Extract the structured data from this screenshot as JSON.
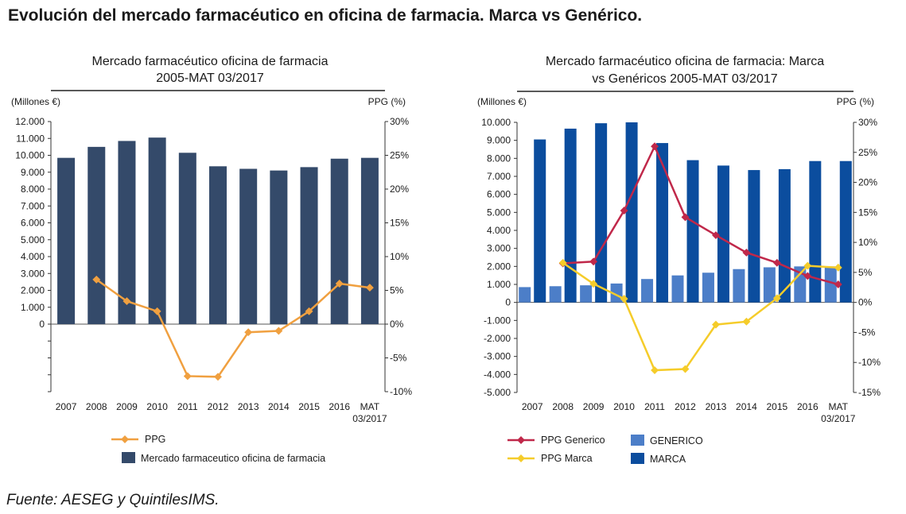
{
  "page": {
    "title": "Evolución del mercado farmacéutico en oficina de farmacia. Marca vs Genérico.",
    "source": "Fuente: AESEG y QuintilesIMS."
  },
  "colors": {
    "bar_market": "#344a6a",
    "ppg_market": "#f0a040",
    "bar_generic": "#4c7ec8",
    "bar_brand": "#0b4d9e",
    "ppg_generic": "#c0284a",
    "ppg_brand": "#f5cc2a"
  },
  "chart_data": [
    {
      "type": "bar",
      "title_lines": [
        "Mercado farmacéutico oficina de farmacia",
        "2005-MAT 03/2017"
      ],
      "left_unit": "(Millones €)",
      "right_unit": "PPG (%)",
      "categories": [
        "2007",
        "2008",
        "2009",
        "2010",
        "2011",
        "2012",
        "2013",
        "2014",
        "2015",
        "2016",
        "MAT|03/2017"
      ],
      "left_axis": {
        "min": -4000,
        "max": 12000,
        "tick_labels": [
          "12.000",
          "11.000",
          "10.000",
          "9.000",
          "8.000",
          "7.000",
          "6.000",
          "5.000",
          "4.000",
          "3.000",
          "2.000",
          "1.000",
          "0"
        ],
        "tick_values": [
          12000,
          11000,
          10000,
          9000,
          8000,
          7000,
          6000,
          5000,
          4000,
          3000,
          2000,
          1000,
          0
        ]
      },
      "right_axis": {
        "min": -10,
        "max": 30,
        "tick_labels": [
          "30%",
          "25%",
          "20%",
          "15%",
          "10%",
          "5%",
          "0%",
          "-5%",
          "-10%"
        ],
        "tick_values": [
          30,
          25,
          20,
          15,
          10,
          5,
          0,
          -5,
          -10
        ]
      },
      "series": [
        {
          "name": "Mercado farmaceutico oficina de farmacia",
          "kind": "bar",
          "axis": "left",
          "values": [
            9850,
            10500,
            10850,
            11050,
            10150,
            9350,
            9200,
            9100,
            9300,
            9800,
            9850
          ]
        },
        {
          "name": "PPG",
          "kind": "line",
          "axis": "right",
          "values": [
            null,
            6.6,
            3.4,
            1.9,
            -7.7,
            -7.8,
            -1.2,
            -1.0,
            1.9,
            6.0,
            5.4
          ]
        }
      ],
      "legend": {
        "placement": "bottom"
      }
    },
    {
      "type": "bar",
      "title_lines": [
        "Mercado farmacéutico oficina de farmacia: Marca",
        "vs Genéricos 2005-MAT 03/2017"
      ],
      "left_unit": "(Millones €)",
      "right_unit": "PPG (%)",
      "categories": [
        "2007",
        "2008",
        "2009",
        "2010",
        "2011",
        "2012",
        "2013",
        "2014",
        "2015",
        "2016",
        "MAT|03/2017"
      ],
      "left_axis": {
        "min": -5000,
        "max": 10000,
        "tick_labels": [
          "10.000",
          "9.000",
          "8.000",
          "7.000",
          "6.000",
          "5.000",
          "4.000",
          "3.000",
          "2.000",
          "1.000",
          "0",
          "-1.000",
          "-2.000",
          "-3.000",
          "-4.000",
          "-5.000"
        ],
        "tick_values": [
          10000,
          9000,
          8000,
          7000,
          6000,
          5000,
          4000,
          3000,
          2000,
          1000,
          0,
          -1000,
          -2000,
          -3000,
          -4000,
          -5000
        ]
      },
      "right_axis": {
        "min": -15,
        "max": 30,
        "tick_labels": [
          "30%",
          "25%",
          "20%",
          "15%",
          "10%",
          "5%",
          "0%",
          "-5%",
          "-10%",
          "-15%"
        ],
        "tick_values": [
          30,
          25,
          20,
          15,
          10,
          5,
          0,
          -5,
          -10,
          -15
        ]
      },
      "series": [
        {
          "name": "GENERICO",
          "kind": "bar",
          "axis": "left",
          "values": [
            850,
            900,
            950,
            1050,
            1300,
            1500,
            1650,
            1850,
            1950,
            2000,
            2000
          ]
        },
        {
          "name": "MARCA",
          "kind": "bar",
          "axis": "left",
          "values": [
            9050,
            9650,
            9950,
            10000,
            8850,
            7900,
            7600,
            7350,
            7400,
            7850,
            7850
          ]
        },
        {
          "name": "PPG Generico",
          "kind": "line",
          "axis": "right",
          "values": [
            null,
            6.5,
            6.8,
            15.3,
            26.0,
            14.2,
            11.2,
            8.3,
            6.6,
            4.4,
            3.0
          ]
        },
        {
          "name": "PPG Marca",
          "kind": "line",
          "axis": "right",
          "values": [
            null,
            6.6,
            3.1,
            0.6,
            -11.3,
            -11.1,
            -3.7,
            -3.2,
            0.7,
            6.1,
            5.8
          ]
        }
      ],
      "legend": {
        "placement": "bottom"
      }
    }
  ]
}
